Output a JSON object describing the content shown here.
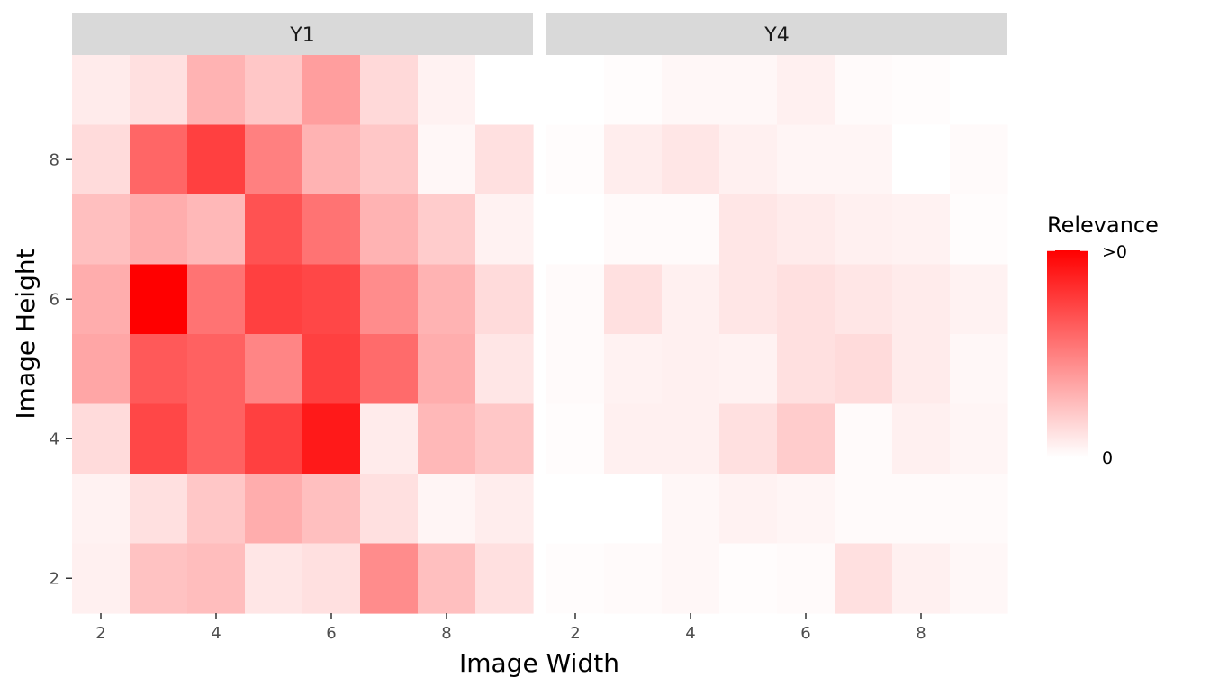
{
  "chart_data": {
    "type": "heatmap",
    "xlabel": "Image Width",
    "ylabel": "Image Height",
    "x_categories": [
      2,
      3,
      4,
      5,
      6,
      7,
      8,
      9
    ],
    "y_categories": [
      2,
      3,
      4,
      5,
      6,
      7,
      8,
      9
    ],
    "x_ticks": [
      "2",
      "4",
      "6",
      "8"
    ],
    "y_ticks": [
      "2",
      "4",
      "6",
      "8"
    ],
    "color_low": "#ffffff",
    "color_high": "#ff0000",
    "legend": {
      "title": "Relevance",
      "high_label": ">0",
      "low_label": "0",
      "placement": "right"
    },
    "panels": [
      {
        "label": "Y1",
        "rows": [
          {
            "y": 9,
            "values": [
              0.08,
              0.12,
              0.3,
              0.22,
              0.38,
              0.15,
              0.05,
              0.0
            ]
          },
          {
            "y": 8,
            "values": [
              0.14,
              0.6,
              0.75,
              0.5,
              0.3,
              0.22,
              0.03,
              0.12
            ]
          },
          {
            "y": 7,
            "values": [
              0.25,
              0.32,
              0.28,
              0.68,
              0.55,
              0.3,
              0.2,
              0.05
            ]
          },
          {
            "y": 6,
            "values": [
              0.32,
              1.0,
              0.55,
              0.75,
              0.72,
              0.45,
              0.3,
              0.14
            ]
          },
          {
            "y": 5,
            "values": [
              0.35,
              0.65,
              0.62,
              0.48,
              0.75,
              0.58,
              0.32,
              0.1
            ]
          },
          {
            "y": 4,
            "values": [
              0.14,
              0.72,
              0.62,
              0.75,
              0.9,
              0.08,
              0.28,
              0.22
            ]
          },
          {
            "y": 3,
            "values": [
              0.05,
              0.12,
              0.22,
              0.32,
              0.25,
              0.12,
              0.04,
              0.07
            ]
          },
          {
            "y": 2,
            "values": [
              0.06,
              0.24,
              0.26,
              0.1,
              0.12,
              0.45,
              0.25,
              0.12
            ]
          }
        ]
      },
      {
        "label": "Y4",
        "rows": [
          {
            "y": 9,
            "values": [
              0.0,
              0.01,
              0.03,
              0.03,
              0.06,
              0.02,
              0.01,
              0.0
            ]
          },
          {
            "y": 8,
            "values": [
              0.01,
              0.07,
              0.1,
              0.06,
              0.04,
              0.04,
              0.0,
              0.02
            ]
          },
          {
            "y": 7,
            "values": [
              0.0,
              0.02,
              0.02,
              0.1,
              0.08,
              0.06,
              0.05,
              0.01
            ]
          },
          {
            "y": 6,
            "values": [
              0.02,
              0.12,
              0.06,
              0.1,
              0.12,
              0.1,
              0.08,
              0.05
            ]
          },
          {
            "y": 5,
            "values": [
              0.02,
              0.05,
              0.06,
              0.05,
              0.12,
              0.14,
              0.08,
              0.03
            ]
          },
          {
            "y": 4,
            "values": [
              0.01,
              0.06,
              0.06,
              0.12,
              0.2,
              0.02,
              0.06,
              0.04
            ]
          },
          {
            "y": 3,
            "values": [
              0.0,
              0.0,
              0.03,
              0.05,
              0.04,
              0.02,
              0.02,
              0.02
            ]
          },
          {
            "y": 2,
            "values": [
              0.01,
              0.02,
              0.03,
              0.01,
              0.02,
              0.12,
              0.06,
              0.03
            ]
          }
        ]
      }
    ]
  }
}
